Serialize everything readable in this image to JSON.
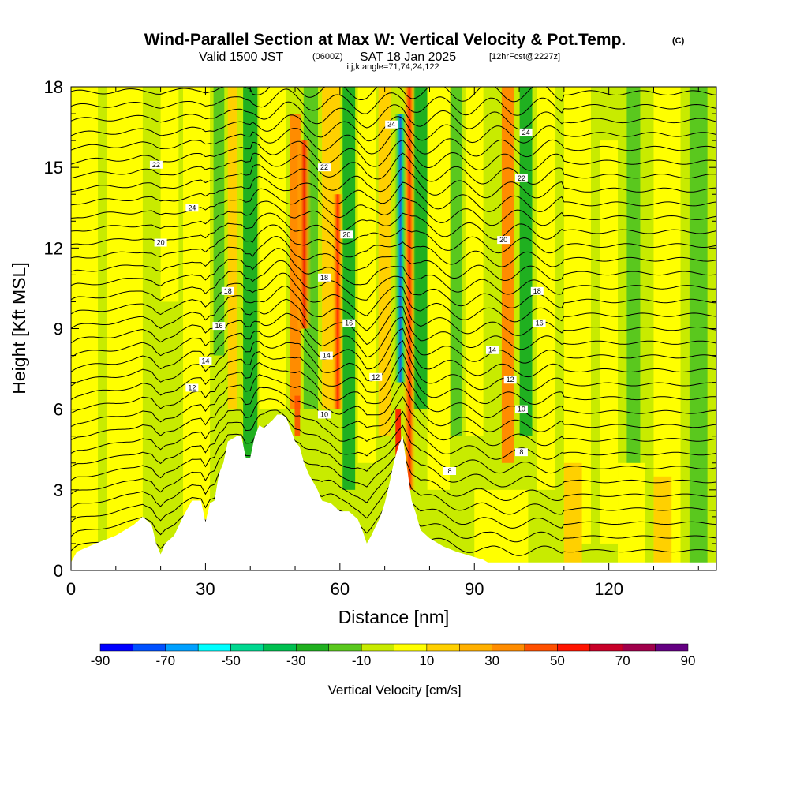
{
  "chart_data": {
    "type": "heatmap",
    "title": "Wind-Parallel Section at Max W: Vertical Velocity & Pot.Temp.",
    "title_mark": "(C)",
    "subtitle": {
      "valid": "Valid 1500 JST",
      "z_time": "(0600Z)",
      "date": "SAT 18 Jan 2025",
      "fcst": "[12hrFcst@2227z]"
    },
    "indices_line": "i,j,k,angle=71,74,24,122",
    "xlabel": "Distance [nm]",
    "ylabel": "Height [Kft MSL]",
    "xlim": [
      0,
      144
    ],
    "ylim": [
      0,
      18
    ],
    "x_ticks": [
      "0",
      "30",
      "60",
      "90",
      "120"
    ],
    "x_tick_values": [
      0,
      30,
      60,
      90,
      120
    ],
    "y_ticks": [
      "0",
      "3",
      "6",
      "9",
      "12",
      "15",
      "18"
    ],
    "y_tick_values": [
      0,
      3,
      6,
      9,
      12,
      15,
      18
    ],
    "colorbar": {
      "label": "Vertical Velocity [cm/s]",
      "tick_labels": [
        "-90",
        "-70",
        "-50",
        "-30",
        "-10",
        "10",
        "30",
        "50",
        "70",
        "90"
      ],
      "levels": [
        -90,
        -80,
        -70,
        -60,
        -50,
        -40,
        -30,
        -20,
        -10,
        0,
        10,
        20,
        30,
        40,
        50,
        60,
        70,
        80,
        90
      ],
      "colors": [
        "#0000ff",
        "#0050ff",
        "#00a0ff",
        "#00ffff",
        "#00d890",
        "#00c050",
        "#20b020",
        "#5ac81e",
        "#c8eb00",
        "#ffff00",
        "#ffd000",
        "#ffb000",
        "#ff8c00",
        "#ff5000",
        "#ff1400",
        "#c80028",
        "#a0004b",
        "#640082"
      ]
    },
    "terrain_kft": [
      [
        0,
        0.3
      ],
      [
        1.3,
        0.7
      ],
      [
        5.5,
        1.0
      ],
      [
        10,
        1.3
      ],
      [
        14,
        1.7
      ],
      [
        16,
        2.0
      ],
      [
        18,
        1.7
      ],
      [
        19,
        1.0
      ],
      [
        20,
        0.6
      ],
      [
        21,
        1.0
      ],
      [
        23,
        1.3
      ],
      [
        25,
        2.0
      ],
      [
        27,
        2.6
      ],
      [
        29,
        2.6
      ],
      [
        30,
        1.8
      ],
      [
        31,
        2.5
      ],
      [
        32,
        2.6
      ],
      [
        33,
        3.6
      ],
      [
        34,
        4.0
      ],
      [
        35,
        4.8
      ],
      [
        37,
        5.0
      ],
      [
        38,
        5.0
      ],
      [
        39,
        4.2
      ],
      [
        40,
        4.2
      ],
      [
        41,
        5.0
      ],
      [
        42,
        5.4
      ],
      [
        43,
        5.3
      ],
      [
        45,
        5.6
      ],
      [
        46,
        5.8
      ],
      [
        47,
        5.8
      ],
      [
        48,
        5.7
      ],
      [
        50,
        4.8
      ],
      [
        51,
        4.6
      ],
      [
        52,
        4.0
      ],
      [
        53,
        3.6
      ],
      [
        55,
        3.0
      ],
      [
        56,
        2.6
      ],
      [
        58,
        2.5
      ],
      [
        60,
        2.2
      ],
      [
        62,
        2.2
      ],
      [
        64,
        1.9
      ],
      [
        65,
        1.5
      ],
      [
        66,
        1.0
      ],
      [
        67,
        1.3
      ],
      [
        69,
        2.0
      ],
      [
        70,
        2.5
      ],
      [
        71,
        3.2
      ],
      [
        72,
        4.0
      ],
      [
        73,
        4.6
      ],
      [
        74,
        5.0
      ],
      [
        75,
        3.8
      ],
      [
        76,
        2.6
      ],
      [
        77,
        2.1
      ],
      [
        78,
        1.5
      ],
      [
        80,
        1.2
      ],
      [
        83,
        0.9
      ],
      [
        86,
        0.7
      ],
      [
        88,
        0.6
      ],
      [
        92,
        0.4
      ],
      [
        93,
        0.3
      ],
      [
        144,
        0.3
      ]
    ],
    "theta_contour_labels": [
      {
        "x": 27,
        "y": 13.5,
        "label": "24"
      },
      {
        "x": 19,
        "y": 15.1,
        "label": "22"
      },
      {
        "x": 20,
        "y": 12.2,
        "label": "20"
      },
      {
        "x": 35,
        "y": 10.4,
        "label": "18"
      },
      {
        "x": 33,
        "y": 9.1,
        "label": "16"
      },
      {
        "x": 30,
        "y": 7.8,
        "label": "14"
      },
      {
        "x": 27,
        "y": 6.8,
        "label": "12"
      },
      {
        "x": 56.5,
        "y": 15.0,
        "label": "22"
      },
      {
        "x": 61.5,
        "y": 12.5,
        "label": "20"
      },
      {
        "x": 56.5,
        "y": 10.9,
        "label": "18"
      },
      {
        "x": 62,
        "y": 9.2,
        "label": "16"
      },
      {
        "x": 57,
        "y": 8.0,
        "label": "14"
      },
      {
        "x": 68,
        "y": 7.2,
        "label": "12"
      },
      {
        "x": 56.5,
        "y": 5.8,
        "label": "10"
      },
      {
        "x": 71.5,
        "y": 16.6,
        "label": "24"
      },
      {
        "x": 101.5,
        "y": 16.3,
        "label": "24"
      },
      {
        "x": 100.5,
        "y": 14.6,
        "label": "22"
      },
      {
        "x": 96.5,
        "y": 12.3,
        "label": "20"
      },
      {
        "x": 104,
        "y": 10.4,
        "label": "18"
      },
      {
        "x": 104.5,
        "y": 9.2,
        "label": "16"
      },
      {
        "x": 94,
        "y": 8.2,
        "label": "14"
      },
      {
        "x": 98,
        "y": 7.1,
        "label": "12"
      },
      {
        "x": 100.5,
        "y": 6.0,
        "label": "10"
      },
      {
        "x": 100.5,
        "y": 4.4,
        "label": "8"
      },
      {
        "x": 84.5,
        "y": 3.7,
        "label": "8"
      }
    ]
  }
}
